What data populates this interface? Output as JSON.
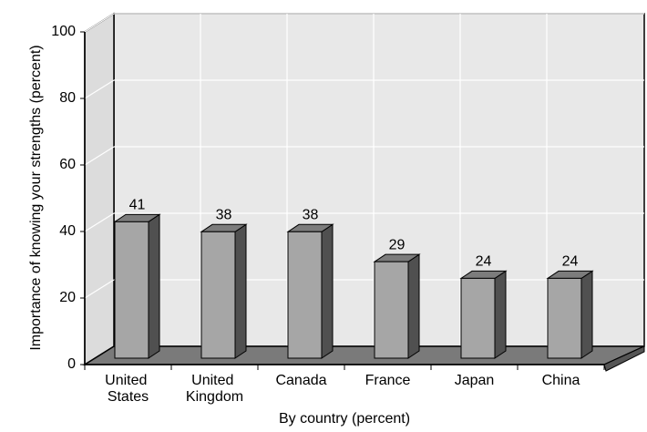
{
  "chart_data": {
    "type": "bar3d",
    "categories": [
      "United States",
      "United Kingdom",
      "Canada",
      "France",
      "Japan",
      "China"
    ],
    "values": [
      41,
      38,
      38,
      29,
      24,
      24
    ],
    "ylabel": "Importance of knowing your strengths (percent)",
    "xlabel": "By country (percent)",
    "ylim": [
      0,
      100
    ],
    "yticks": [
      0,
      20,
      40,
      60,
      80,
      100
    ],
    "grid": true,
    "color": "#a6a6a6"
  }
}
